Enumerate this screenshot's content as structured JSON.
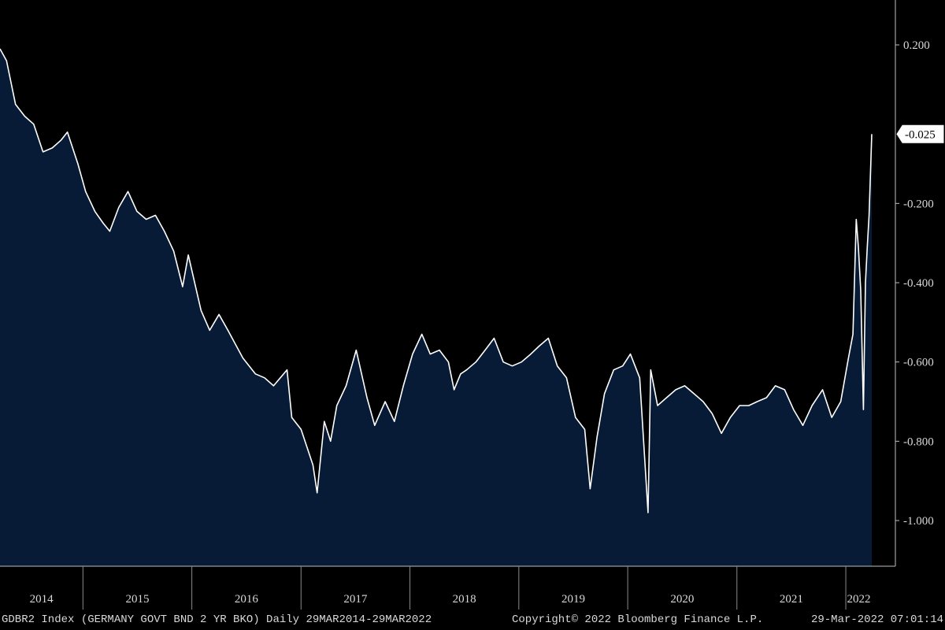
{
  "footer": {
    "ticker": "GDBR2 Index (GERMANY GOVT BND 2 YR BKO)  Daily 29MAR2014-29MAR2022",
    "copyright": "Copyright© 2022 Bloomberg Finance L.P.",
    "timestamp": "29-Mar-2022 07:01:14"
  },
  "colors": {
    "background": "#000000",
    "area_fill": "#071a36",
    "line": "#ffffff",
    "text": "#d8d8d8"
  },
  "chart_data": {
    "type": "area",
    "title": "",
    "xlabel": "",
    "ylabel": "",
    "ylim": [
      -1.12,
      0.31
    ],
    "yticks": [
      0.2,
      -0.2,
      -0.4,
      -0.6,
      -0.8,
      -1.0
    ],
    "ytick_labels": [
      "0.200",
      "-0.200",
      "-0.400",
      "-0.600",
      "-0.800",
      "-1.000"
    ],
    "xlim": [
      "2014-03-29",
      "2022-03-29"
    ],
    "xtick_labels": [
      "2014",
      "2015",
      "2016",
      "2017",
      "2018",
      "2019",
      "2020",
      "2021",
      "2022"
    ],
    "year_boundaries": [
      "2015-01-01",
      "2016-01-01",
      "2017-01-01",
      "2018-01-01",
      "2019-01-01",
      "2020-01-01",
      "2021-01-01",
      "2022-01-01"
    ],
    "last_value_label": "-0.025",
    "last_value": -0.025,
    "grid": false,
    "series": [
      {
        "points": [
          [
            "2014-03-29",
            0.19
          ],
          [
            "2014-04-20",
            0.16
          ],
          [
            "2014-05-20",
            0.05
          ],
          [
            "2014-06-20",
            0.02
          ],
          [
            "2014-07-20",
            0.0
          ],
          [
            "2014-08-20",
            -0.07
          ],
          [
            "2014-09-20",
            -0.06
          ],
          [
            "2014-10-20",
            -0.04
          ],
          [
            "2014-11-10",
            -0.02
          ],
          [
            "2014-12-15",
            -0.1
          ],
          [
            "2015-01-10",
            -0.17
          ],
          [
            "2015-02-10",
            -0.22
          ],
          [
            "2015-03-10",
            -0.25
          ],
          [
            "2015-04-01",
            -0.27
          ],
          [
            "2015-05-01",
            -0.21
          ],
          [
            "2015-06-01",
            -0.17
          ],
          [
            "2015-07-01",
            -0.22
          ],
          [
            "2015-08-01",
            -0.24
          ],
          [
            "2015-09-01",
            -0.23
          ],
          [
            "2015-10-01",
            -0.27
          ],
          [
            "2015-11-01",
            -0.32
          ],
          [
            "2015-12-01",
            -0.41
          ],
          [
            "2015-12-20",
            -0.33
          ],
          [
            "2016-02-01",
            -0.47
          ],
          [
            "2016-03-01",
            -0.52
          ],
          [
            "2016-04-01",
            -0.48
          ],
          [
            "2016-05-01",
            -0.52
          ],
          [
            "2016-06-20",
            -0.59
          ],
          [
            "2016-08-01",
            -0.63
          ],
          [
            "2016-09-01",
            -0.64
          ],
          [
            "2016-10-01",
            -0.66
          ],
          [
            "2016-11-15",
            -0.62
          ],
          [
            "2016-12-01",
            -0.74
          ],
          [
            "2017-01-01",
            -0.77
          ],
          [
            "2017-02-10",
            -0.86
          ],
          [
            "2017-02-24",
            -0.93
          ],
          [
            "2017-03-20",
            -0.75
          ],
          [
            "2017-04-10",
            -0.8
          ],
          [
            "2017-05-01",
            -0.71
          ],
          [
            "2017-06-01",
            -0.66
          ],
          [
            "2017-07-05",
            -0.57
          ],
          [
            "2017-08-10",
            -0.69
          ],
          [
            "2017-09-05",
            -0.76
          ],
          [
            "2017-10-10",
            -0.7
          ],
          [
            "2017-11-10",
            -0.75
          ],
          [
            "2017-12-10",
            -0.66
          ],
          [
            "2018-01-10",
            -0.58
          ],
          [
            "2018-02-10",
            -0.53
          ],
          [
            "2018-03-10",
            -0.58
          ],
          [
            "2018-04-10",
            -0.57
          ],
          [
            "2018-05-10",
            -0.6
          ],
          [
            "2018-05-29",
            -0.67
          ],
          [
            "2018-06-20",
            -0.63
          ],
          [
            "2018-07-10",
            -0.62
          ],
          [
            "2018-08-10",
            -0.6
          ],
          [
            "2018-09-10",
            -0.57
          ],
          [
            "2018-10-10",
            -0.54
          ],
          [
            "2018-11-10",
            -0.6
          ],
          [
            "2018-12-10",
            -0.61
          ],
          [
            "2019-01-10",
            -0.6
          ],
          [
            "2019-02-10",
            -0.58
          ],
          [
            "2019-03-10",
            -0.56
          ],
          [
            "2019-04-10",
            -0.54
          ],
          [
            "2019-05-10",
            -0.61
          ],
          [
            "2019-06-10",
            -0.64
          ],
          [
            "2019-07-10",
            -0.74
          ],
          [
            "2019-08-10",
            -0.77
          ],
          [
            "2019-08-28",
            -0.92
          ],
          [
            "2019-09-20",
            -0.79
          ],
          [
            "2019-10-15",
            -0.68
          ],
          [
            "2019-11-15",
            -0.62
          ],
          [
            "2019-12-15",
            -0.61
          ],
          [
            "2020-01-10",
            -0.58
          ],
          [
            "2020-02-10",
            -0.64
          ],
          [
            "2020-03-09",
            -0.98
          ],
          [
            "2020-03-18",
            -0.62
          ],
          [
            "2020-04-10",
            -0.71
          ],
          [
            "2020-05-10",
            -0.69
          ],
          [
            "2020-06-10",
            -0.67
          ],
          [
            "2020-07-10",
            -0.66
          ],
          [
            "2020-08-10",
            -0.68
          ],
          [
            "2020-09-10",
            -0.7
          ],
          [
            "2020-10-10",
            -0.73
          ],
          [
            "2020-11-10",
            -0.78
          ],
          [
            "2020-12-10",
            -0.74
          ],
          [
            "2021-01-10",
            -0.71
          ],
          [
            "2021-02-10",
            -0.71
          ],
          [
            "2021-03-10",
            -0.7
          ],
          [
            "2021-04-10",
            -0.69
          ],
          [
            "2021-05-10",
            -0.66
          ],
          [
            "2021-06-10",
            -0.67
          ],
          [
            "2021-07-10",
            -0.72
          ],
          [
            "2021-08-10",
            -0.76
          ],
          [
            "2021-09-10",
            -0.71
          ],
          [
            "2021-10-15",
            -0.67
          ],
          [
            "2021-11-15",
            -0.74
          ],
          [
            "2021-12-15",
            -0.7
          ],
          [
            "2022-01-10",
            -0.59
          ],
          [
            "2022-01-25",
            -0.53
          ],
          [
            "2022-02-05",
            -0.24
          ],
          [
            "2022-02-12",
            -0.31
          ],
          [
            "2022-02-20",
            -0.42
          ],
          [
            "2022-03-01",
            -0.72
          ],
          [
            "2022-03-08",
            -0.4
          ],
          [
            "2022-03-14",
            -0.31
          ],
          [
            "2022-03-20",
            -0.23
          ],
          [
            "2022-03-29",
            -0.025
          ]
        ]
      }
    ]
  }
}
